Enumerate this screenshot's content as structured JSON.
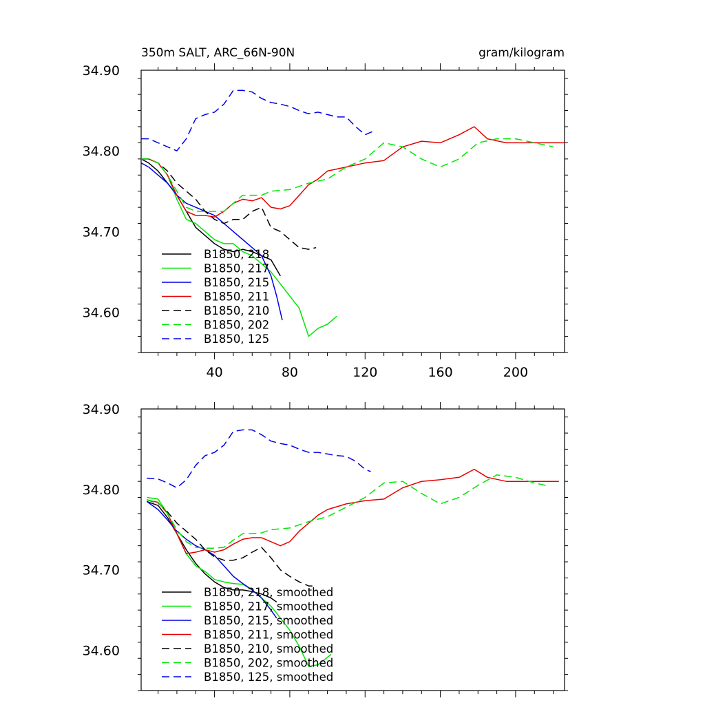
{
  "chart_data": [
    {
      "type": "line",
      "title": "350m SALT, ARC_66N-90N",
      "units": "gram/kilogram",
      "xlabel": "",
      "ylabel": "",
      "xlim": [
        1,
        226
      ],
      "ylim": [
        34.55,
        34.9
      ],
      "xticks": [
        40,
        80,
        120,
        160,
        200
      ],
      "xtick_labels": [
        "40",
        "80",
        "120",
        "160",
        "200"
      ],
      "yticks": [
        34.6,
        34.7,
        34.8,
        34.9
      ],
      "ytick_labels": [
        "34.60",
        "34.70",
        "34.80",
        "34.90"
      ],
      "legend_placement": "bottom-left",
      "series": [
        {
          "name": "B1850, 218",
          "color": "#000000",
          "dash": "solid",
          "x": [
            1,
            5,
            10,
            15,
            20,
            25,
            30,
            35,
            40,
            45,
            50,
            55,
            60,
            65,
            70,
            75
          ],
          "y": [
            34.79,
            34.785,
            34.775,
            34.76,
            34.745,
            34.725,
            34.705,
            34.695,
            34.685,
            34.678,
            34.675,
            34.678,
            34.675,
            34.67,
            34.665,
            34.645
          ]
        },
        {
          "name": "B1850, 217",
          "color": "#00e600",
          "dash": "solid",
          "x": [
            1,
            5,
            10,
            15,
            20,
            25,
            30,
            35,
            40,
            45,
            50,
            55,
            60,
            65,
            70,
            75,
            80,
            85,
            90,
            95,
            100,
            105
          ],
          "y": [
            34.79,
            34.79,
            34.785,
            34.77,
            34.74,
            34.715,
            34.71,
            34.7,
            34.69,
            34.685,
            34.685,
            34.675,
            34.67,
            34.66,
            34.65,
            34.635,
            34.62,
            34.605,
            34.57,
            34.58,
            34.585,
            34.595
          ]
        },
        {
          "name": "B1850, 215",
          "color": "#0000e6",
          "dash": "solid",
          "x": [
            1,
            5,
            10,
            15,
            20,
            25,
            30,
            35,
            40,
            45,
            50,
            55,
            60,
            65,
            70,
            73,
            76
          ],
          "y": [
            34.785,
            34.78,
            34.77,
            34.76,
            34.745,
            34.735,
            34.73,
            34.725,
            34.72,
            34.71,
            34.7,
            34.69,
            34.68,
            34.67,
            34.645,
            34.62,
            34.59
          ]
        },
        {
          "name": "B1850, 211",
          "color": "#e60000",
          "dash": "solid",
          "x": [
            1,
            5,
            10,
            15,
            20,
            25,
            30,
            35,
            40,
            45,
            50,
            55,
            60,
            65,
            70,
            75,
            80,
            85,
            90,
            95,
            100,
            110,
            120,
            130,
            140,
            150,
            160,
            170,
            178,
            185,
            195,
            205,
            215,
            226
          ],
          "y": [
            34.79,
            34.79,
            34.785,
            34.77,
            34.745,
            34.725,
            34.72,
            34.72,
            34.718,
            34.725,
            34.735,
            34.74,
            34.738,
            34.742,
            34.73,
            34.728,
            34.732,
            34.745,
            34.758,
            34.765,
            34.775,
            34.78,
            34.785,
            34.788,
            34.805,
            34.812,
            34.81,
            34.82,
            34.83,
            34.815,
            34.81,
            34.81,
            34.81,
            34.81
          ]
        },
        {
          "name": "B1850, 210",
          "color": "#000000",
          "dash": "dashed",
          "x": [
            1,
            5,
            10,
            15,
            20,
            25,
            30,
            35,
            40,
            45,
            50,
            55,
            60,
            65,
            70,
            75,
            80,
            85,
            90,
            94
          ],
          "y": [
            34.79,
            34.79,
            34.785,
            34.775,
            34.76,
            34.75,
            34.74,
            34.725,
            34.715,
            34.71,
            34.715,
            34.715,
            34.725,
            34.73,
            34.705,
            34.7,
            34.69,
            34.68,
            34.678,
            34.68
          ]
        },
        {
          "name": "B1850, 202",
          "color": "#00e600",
          "dash": "dashed",
          "x": [
            1,
            5,
            10,
            15,
            20,
            25,
            30,
            35,
            40,
            45,
            50,
            55,
            60,
            65,
            70,
            80,
            90,
            100,
            110,
            120,
            130,
            140,
            150,
            160,
            170,
            180,
            190,
            200,
            210,
            220
          ],
          "y": [
            34.79,
            34.79,
            34.785,
            34.77,
            34.75,
            34.73,
            34.725,
            34.725,
            34.725,
            34.725,
            34.735,
            34.745,
            34.745,
            34.745,
            34.75,
            34.752,
            34.76,
            34.765,
            34.78,
            34.79,
            34.81,
            34.805,
            34.79,
            34.78,
            34.79,
            34.81,
            34.815,
            34.815,
            34.81,
            34.805
          ]
        },
        {
          "name": "B1850, 125",
          "color": "#0000e6",
          "dash": "dashed",
          "x": [
            1,
            5,
            10,
            15,
            20,
            25,
            30,
            35,
            40,
            45,
            50,
            55,
            60,
            65,
            70,
            75,
            80,
            85,
            90,
            95,
            100,
            105,
            110,
            115,
            120,
            125
          ],
          "y": [
            34.815,
            34.815,
            34.81,
            34.805,
            34.8,
            34.815,
            34.84,
            34.845,
            34.848,
            34.858,
            34.875,
            34.875,
            34.873,
            34.865,
            34.86,
            34.858,
            34.855,
            34.85,
            34.846,
            34.848,
            34.845,
            34.842,
            34.842,
            34.83,
            34.82,
            34.825
          ]
        }
      ]
    },
    {
      "type": "line",
      "title": "",
      "xlabel": "",
      "ylabel": "",
      "xlim": [
        1,
        226
      ],
      "ylim": [
        34.55,
        34.9
      ],
      "xticks": [
        40,
        80,
        120,
        160,
        200
      ],
      "xtick_labels": [],
      "yticks": [
        34.6,
        34.7,
        34.8,
        34.9
      ],
      "ytick_labels": [
        "34.60",
        "34.70",
        "34.80",
        "34.90"
      ],
      "legend_placement": "bottom-left",
      "series": [
        {
          "name": "B1850, 218, smoothed",
          "color": "#000000",
          "dash": "solid",
          "x": [
            4,
            10,
            15,
            20,
            25,
            30,
            35,
            40,
            45,
            50,
            55,
            60,
            65,
            70,
            73
          ],
          "y": [
            34.785,
            34.78,
            34.765,
            34.745,
            34.725,
            34.708,
            34.695,
            34.685,
            34.678,
            34.675,
            34.675,
            34.673,
            34.67,
            34.665,
            34.66
          ]
        },
        {
          "name": "B1850, 217, smoothed",
          "color": "#00e600",
          "dash": "solid",
          "x": [
            4,
            10,
            15,
            20,
            25,
            30,
            35,
            40,
            45,
            50,
            55,
            60,
            65,
            70,
            75,
            80,
            85,
            90,
            95,
            102
          ],
          "y": [
            34.79,
            34.788,
            34.77,
            34.745,
            34.72,
            34.705,
            34.698,
            34.688,
            34.685,
            34.683,
            34.682,
            34.675,
            34.665,
            34.655,
            34.64,
            34.625,
            34.605,
            34.58,
            34.582,
            34.595
          ]
        },
        {
          "name": "B1850, 215, smoothed",
          "color": "#0000e6",
          "dash": "solid",
          "x": [
            4,
            10,
            15,
            20,
            25,
            30,
            35,
            40,
            45,
            50,
            55,
            60,
            65,
            70,
            73
          ],
          "y": [
            34.785,
            34.775,
            34.762,
            34.748,
            34.738,
            34.73,
            34.725,
            34.718,
            34.705,
            34.692,
            34.683,
            34.675,
            34.665,
            34.65,
            34.64
          ]
        },
        {
          "name": "B1850, 211, smoothed",
          "color": "#e60000",
          "dash": "solid",
          "x": [
            4,
            10,
            15,
            20,
            25,
            30,
            35,
            40,
            45,
            50,
            55,
            60,
            65,
            70,
            75,
            80,
            85,
            90,
            95,
            100,
            110,
            120,
            130,
            140,
            150,
            160,
            170,
            178,
            185,
            195,
            205,
            215,
            223
          ],
          "y": [
            34.787,
            34.784,
            34.77,
            34.745,
            34.72,
            34.722,
            34.725,
            34.722,
            34.725,
            34.732,
            34.738,
            34.74,
            34.74,
            34.735,
            34.73,
            34.735,
            34.748,
            34.758,
            34.768,
            34.775,
            34.782,
            34.786,
            34.788,
            34.802,
            34.81,
            34.812,
            34.815,
            34.825,
            34.815,
            34.81,
            34.81,
            34.81,
            34.81
          ]
        },
        {
          "name": "B1850, 210, smoothed",
          "color": "#000000",
          "dash": "dashed",
          "x": [
            4,
            10,
            15,
            20,
            25,
            30,
            35,
            40,
            45,
            50,
            55,
            60,
            65,
            70,
            75,
            80,
            85,
            90,
            92
          ],
          "y": [
            34.787,
            34.783,
            34.772,
            34.758,
            34.748,
            34.738,
            34.725,
            34.716,
            34.712,
            34.712,
            34.715,
            34.722,
            34.728,
            34.715,
            34.7,
            34.692,
            34.685,
            34.68,
            34.68
          ]
        },
        {
          "name": "B1850, 202, smoothed",
          "color": "#00e600",
          "dash": "dashed",
          "x": [
            4,
            10,
            15,
            20,
            25,
            30,
            35,
            40,
            45,
            50,
            55,
            60,
            65,
            70,
            80,
            90,
            100,
            110,
            120,
            130,
            140,
            150,
            160,
            170,
            180,
            190,
            200,
            210,
            218
          ],
          "y": [
            34.787,
            34.784,
            34.77,
            34.75,
            34.735,
            34.728,
            34.727,
            34.727,
            34.728,
            34.737,
            34.745,
            34.745,
            34.746,
            34.75,
            34.752,
            34.76,
            34.766,
            34.778,
            34.79,
            34.808,
            34.81,
            34.795,
            34.782,
            34.79,
            34.805,
            34.818,
            34.815,
            34.808,
            34.804
          ]
        },
        {
          "name": "B1850, 125, smoothed",
          "color": "#0000e6",
          "dash": "dashed",
          "x": [
            4,
            10,
            15,
            20,
            25,
            30,
            35,
            40,
            45,
            50,
            55,
            60,
            65,
            70,
            75,
            80,
            85,
            90,
            95,
            100,
            105,
            110,
            115,
            120,
            123
          ],
          "y": [
            34.814,
            34.813,
            34.808,
            34.802,
            34.812,
            34.83,
            34.842,
            34.846,
            34.855,
            34.872,
            34.874,
            34.874,
            34.868,
            34.86,
            34.857,
            34.855,
            34.85,
            34.846,
            34.846,
            34.844,
            34.842,
            34.841,
            34.835,
            34.825,
            34.822
          ]
        }
      ]
    }
  ]
}
